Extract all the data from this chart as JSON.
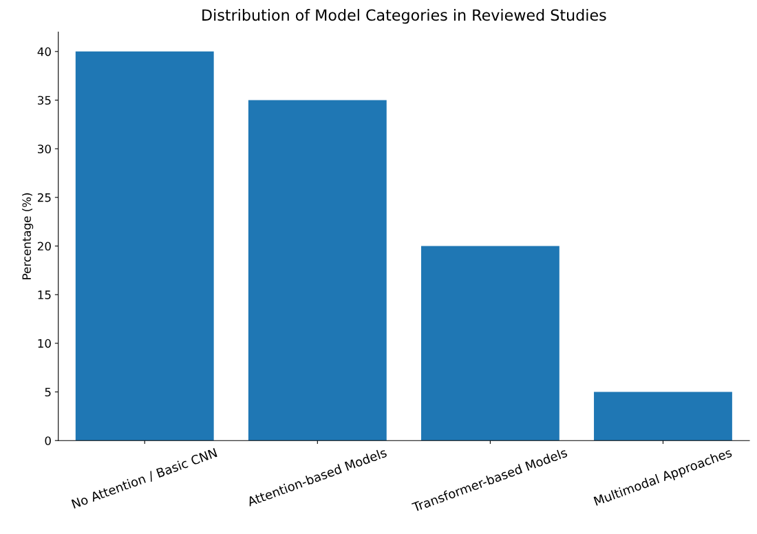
{
  "chart_data": {
    "type": "bar",
    "title": "Distribution of Model Categories in Reviewed Studies",
    "ylabel": "Percentage (%)",
    "categories": [
      "No Attention / Basic CNN",
      "Attention-based Models",
      "Transformer-based Models",
      "Multimodal Approaches"
    ],
    "values": [
      40,
      35,
      20,
      5
    ],
    "color": "#1f77b4",
    "ylim": [
      0,
      42
    ],
    "yticks": [
      0,
      5,
      10,
      15,
      20,
      25,
      30,
      35,
      40
    ],
    "grid": false,
    "legend": false
  }
}
